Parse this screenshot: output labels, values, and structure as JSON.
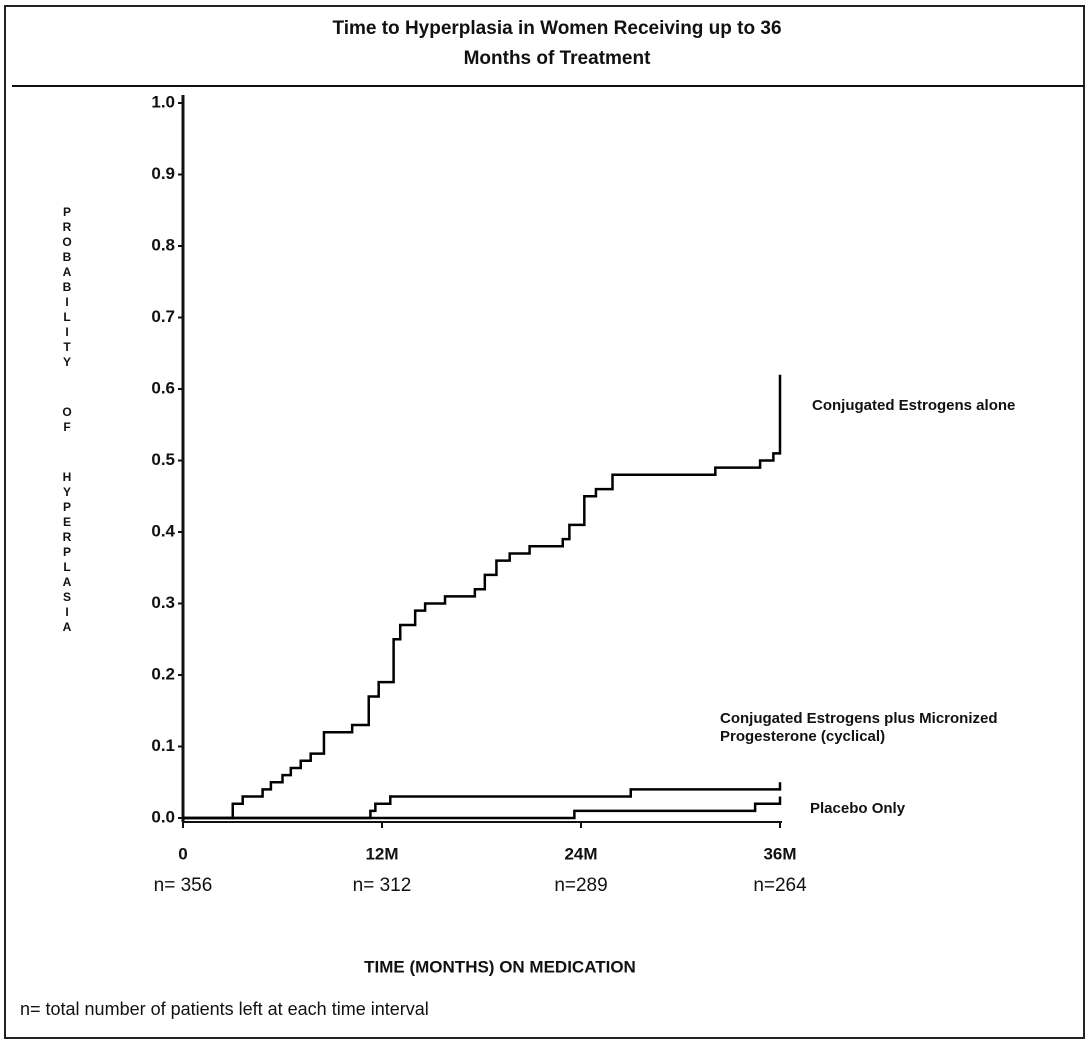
{
  "chart_data": {
    "type": "line",
    "step": "post",
    "title": "Time to Hyperplasia in Women Receiving up to 36 Months of Treatment",
    "x_label": "TIME (MONTHS) ON MEDICATION",
    "y_label": "PROBABILITY OF HYPERPLASIA",
    "footnote": "n= total number of patients left at each time interval",
    "xlim": [
      0,
      36
    ],
    "xticks": [
      0,
      {
        "value": 12,
        "label": "12M"
      },
      {
        "value": 24,
        "label": "24M"
      },
      {
        "value": 36,
        "label": "36M"
      }
    ],
    "x_counts": [
      "n= 356",
      "n= 312",
      "n=289",
      "n=264"
    ],
    "ylim": [
      0,
      1
    ],
    "yticks": [
      {
        "value": 0,
        "label": "0.0"
      },
      0.1,
      0.2,
      0.3,
      0.4,
      0.5,
      0.6,
      0.7,
      0.8,
      0.9,
      {
        "value": 1,
        "label": "1.0"
      }
    ],
    "grid": false,
    "series": [
      {
        "name": "Conjugated Estrogens alone",
        "color": "#000000",
        "x": [
          0,
          3,
          3.6,
          4.8,
          5.3,
          6,
          6.5,
          7.1,
          7.7,
          8.5,
          10.2,
          11.2,
          11.8,
          12.7,
          13.1,
          14,
          14.6,
          15.8,
          17.6,
          18.2,
          18.9,
          19.7,
          20.9,
          22.9,
          23.3,
          24.2,
          24.9,
          25.9,
          31.8,
          32.1,
          34.8,
          35.6,
          36,
          36
        ],
        "values": [
          0,
          0.02,
          0.03,
          0.04,
          0.05,
          0.06,
          0.07,
          0.08,
          0.09,
          0.12,
          0.13,
          0.17,
          0.19,
          0.25,
          0.27,
          0.29,
          0.3,
          0.31,
          0.32,
          0.34,
          0.36,
          0.37,
          0.38,
          0.39,
          0.41,
          0.45,
          0.46,
          0.48,
          0.48,
          0.49,
          0.5,
          0.51,
          0.51,
          0.62
        ]
      },
      {
        "name": "Conjugated Estrogens plus Micronized Progesterone (cyclical)",
        "color": "#000000",
        "x": [
          0,
          11.3,
          11.6,
          12.5,
          27,
          36,
          36
        ],
        "values": [
          0,
          0.01,
          0.02,
          0.03,
          0.04,
          0.04,
          0.05
        ]
      },
      {
        "name": "Placebo Only",
        "color": "#000000",
        "x": [
          0,
          23.6,
          34.5,
          36,
          36
        ],
        "values": [
          0,
          0.01,
          0.02,
          0.02,
          0.03
        ]
      }
    ]
  }
}
